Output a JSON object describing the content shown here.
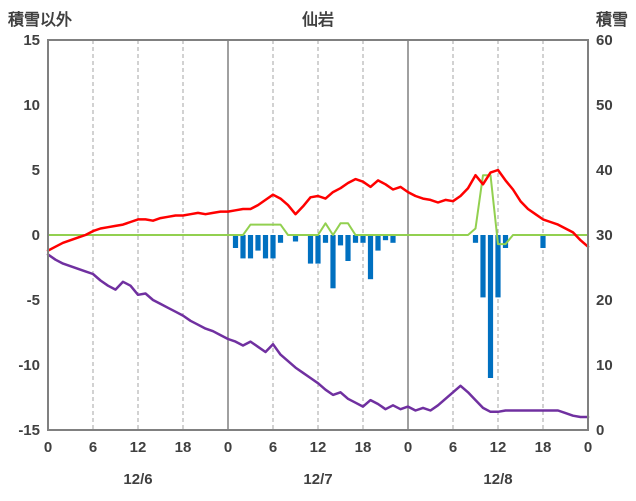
{
  "header": {
    "left_axis_title": "積雪以外",
    "chart_title": "仙岩",
    "right_axis_title": "積雪"
  },
  "colors": {
    "text": "#404040",
    "border": "#808080",
    "grid_solid": "#808080",
    "grid_dashed": "#a6a6a6",
    "red_line": "#ff0000",
    "purple_line": "#7030a0",
    "green_line": "#92d050",
    "blue_bars": "#0070c0"
  },
  "chart_data": {
    "type": "combo",
    "title": "仙岩",
    "x_unit": "hour",
    "x_range": [
      0,
      72
    ],
    "x_tick_interval_hours": 6,
    "x_tick_labels": [
      "0",
      "6",
      "12",
      "18",
      "0",
      "6",
      "12",
      "18",
      "0",
      "6",
      "12",
      "18",
      "0"
    ],
    "day_labels": [
      "12/6",
      "12/7",
      "12/8"
    ],
    "left_axis": {
      "title": "積雪以外",
      "min": -15,
      "max": 15,
      "ticks": [
        15,
        10,
        5,
        0,
        -5,
        -10,
        -15
      ]
    },
    "right_axis": {
      "title": "積雪",
      "min": 0,
      "max": 60,
      "ticks": [
        60,
        50,
        40,
        30,
        20,
        10,
        0
      ]
    },
    "grid": {
      "vertical_every_hours": 6,
      "solid_at_day_boundaries": true,
      "horizontal": false
    },
    "series": [
      {
        "name": "blue_bars",
        "type": "bar",
        "axis": "left",
        "color": "#0070c0",
        "values": [
          0,
          0,
          0,
          0,
          0,
          0,
          0,
          0,
          0,
          0,
          0,
          0,
          0,
          0,
          0,
          0,
          0,
          0,
          0,
          0,
          0,
          0,
          0,
          0,
          0,
          -1.0,
          -1.8,
          -1.8,
          -1.2,
          -1.8,
          -1.8,
          -0.6,
          0,
          -0.5,
          0,
          -2.2,
          -2.2,
          -0.6,
          -4.1,
          -0.8,
          -2.0,
          -0.6,
          -0.6,
          -3.4,
          -1.2,
          -0.4,
          -0.6,
          0,
          0,
          0,
          0,
          0,
          0,
          0,
          0,
          0,
          0,
          -0.6,
          -4.8,
          -11.0,
          -4.8,
          -1.0,
          0,
          0,
          0,
          0,
          -1.0,
          0,
          0,
          0,
          0,
          0,
          0
        ]
      },
      {
        "name": "green_line",
        "type": "line",
        "axis": "left",
        "color": "#92d050",
        "width": 2,
        "values": [
          0,
          0,
          0,
          0,
          0,
          0,
          0,
          0,
          0,
          0,
          0,
          0,
          0,
          0,
          0,
          0,
          0,
          0,
          0,
          0,
          0,
          0,
          0,
          0,
          0,
          0,
          0,
          0.8,
          0.8,
          0.8,
          0.8,
          0.8,
          0,
          0,
          0,
          0,
          0,
          0.9,
          0,
          0.9,
          0.9,
          0,
          0,
          0,
          0,
          0,
          0,
          0,
          0,
          0,
          0,
          0,
          0,
          0,
          0,
          0,
          0,
          0.5,
          4.6,
          4.6,
          -0.7,
          -0.7,
          0,
          0,
          0,
          0,
          0,
          0,
          0,
          0,
          0,
          0,
          0
        ]
      },
      {
        "name": "purple_line",
        "type": "line",
        "axis": "left",
        "color": "#7030a0",
        "width": 2.5,
        "values": [
          -1.5,
          -1.9,
          -2.2,
          -2.4,
          -2.6,
          -2.8,
          -3.0,
          -3.5,
          -3.9,
          -4.2,
          -3.6,
          -3.9,
          -4.6,
          -4.5,
          -5.0,
          -5.3,
          -5.6,
          -5.9,
          -6.2,
          -6.6,
          -6.9,
          -7.2,
          -7.4,
          -7.7,
          -8.0,
          -8.2,
          -8.5,
          -8.2,
          -8.6,
          -9.0,
          -8.4,
          -9.2,
          -9.7,
          -10.2,
          -10.6,
          -11.0,
          -11.4,
          -11.9,
          -12.3,
          -12.1,
          -12.6,
          -12.9,
          -13.2,
          -12.7,
          -13.0,
          -13.4,
          -13.1,
          -13.4,
          -13.2,
          -13.5,
          -13.3,
          -13.5,
          -13.1,
          -12.6,
          -12.1,
          -11.6,
          -12.1,
          -12.7,
          -13.3,
          -13.6,
          -13.6,
          -13.5,
          -13.5,
          -13.5,
          -13.5,
          -13.5,
          -13.5,
          -13.5,
          -13.5,
          -13.7,
          -13.9,
          -14.0,
          -14.0
        ]
      },
      {
        "name": "red_line",
        "type": "line",
        "axis": "left",
        "color": "#ff0000",
        "width": 2.5,
        "values": [
          -1.2,
          -0.9,
          -0.6,
          -0.4,
          -0.2,
          0.0,
          0.3,
          0.5,
          0.6,
          0.7,
          0.8,
          1.0,
          1.2,
          1.2,
          1.1,
          1.3,
          1.4,
          1.5,
          1.5,
          1.6,
          1.7,
          1.6,
          1.7,
          1.8,
          1.8,
          1.9,
          2.0,
          2.0,
          2.3,
          2.7,
          3.1,
          2.8,
          2.3,
          1.6,
          2.2,
          2.9,
          3.0,
          2.8,
          3.3,
          3.6,
          4.0,
          4.3,
          4.1,
          3.7,
          4.2,
          3.9,
          3.5,
          3.7,
          3.3,
          3.0,
          2.8,
          2.7,
          2.5,
          2.7,
          2.6,
          3.0,
          3.6,
          4.6,
          3.9,
          4.8,
          5.0,
          4.2,
          3.5,
          2.6,
          2.0,
          1.6,
          1.2,
          1.0,
          0.8,
          0.5,
          0.2,
          -0.4,
          -0.9
        ]
      }
    ]
  }
}
